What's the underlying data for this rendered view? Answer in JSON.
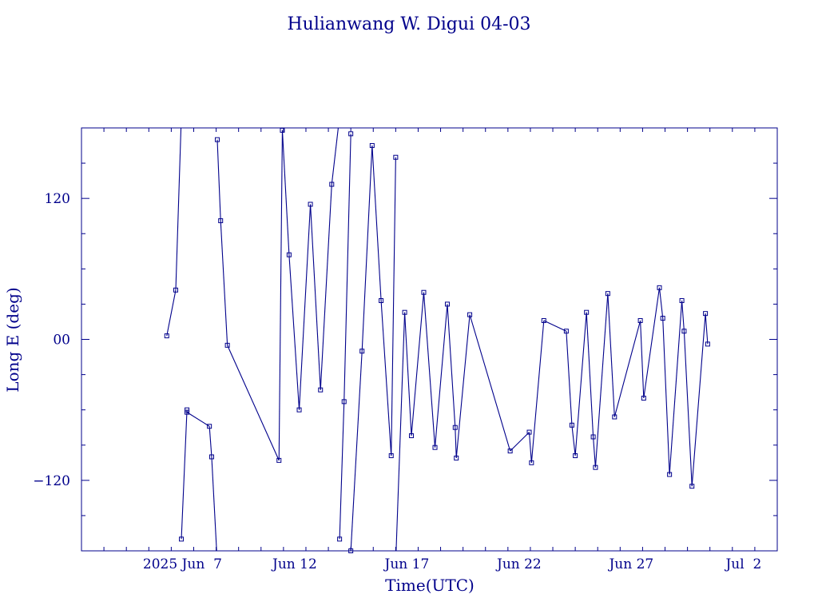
{
  "colors": {
    "ink": "#00008b",
    "background": "#ffffff"
  },
  "chart_data": {
    "type": "line",
    "title": "Hulianwang W. Digui 04-03",
    "xlabel": "Time(UTC)",
    "ylabel": "Long E (deg)",
    "x_unit": "days",
    "x_range": [
      "2025-06-02T12:00",
      "2025-07-03T12:00"
    ],
    "xlim": [
      0,
      31
    ],
    "ylim": [
      -180,
      180
    ],
    "y_wrap": true,
    "x_ticks": [
      {
        "x": 4.5,
        "label": "2025 Jun  7"
      },
      {
        "x": 9.5,
        "label": "Jun 12"
      },
      {
        "x": 14.5,
        "label": "Jun 17"
      },
      {
        "x": 19.5,
        "label": "Jun 22"
      },
      {
        "x": 24.5,
        "label": "Jun 27"
      },
      {
        "x": 29.5,
        "label": "Jul  2"
      }
    ],
    "y_ticks": [
      {
        "y": 120,
        "label": "120"
      },
      {
        "y": 0,
        "label": "00"
      },
      {
        "y": -120,
        "label": "−120"
      }
    ],
    "grid": false,
    "marker": "square",
    "points": [
      [
        3.8,
        3
      ],
      [
        4.2,
        42
      ],
      [
        4.45,
        190
      ],
      [
        4.45,
        -170
      ],
      [
        4.7,
        -60
      ],
      [
        4.7,
        -62
      ],
      [
        5.7,
        -74
      ],
      [
        5.8,
        -100
      ],
      [
        6.05,
        -190
      ],
      [
        6.05,
        170
      ],
      [
        6.2,
        101
      ],
      [
        6.5,
        -5
      ],
      [
        8.8,
        -103
      ],
      [
        8.95,
        178
      ],
      [
        9.25,
        72
      ],
      [
        9.7,
        -60
      ],
      [
        10.2,
        115
      ],
      [
        10.65,
        -43
      ],
      [
        11.15,
        132
      ],
      [
        11.5,
        190
      ],
      [
        11.5,
        -170
      ],
      [
        11.7,
        -53
      ],
      [
        12.0,
        175
      ],
      [
        12.0,
        -180
      ],
      [
        12.5,
        -10
      ],
      [
        12.95,
        165
      ],
      [
        13.35,
        33
      ],
      [
        13.8,
        -99
      ],
      [
        14.0,
        155
      ],
      [
        14.0,
        -190
      ],
      [
        14.4,
        23
      ],
      [
        14.7,
        -82
      ],
      [
        15.25,
        40
      ],
      [
        15.75,
        -92
      ],
      [
        16.3,
        30
      ],
      [
        16.65,
        -75
      ],
      [
        16.7,
        -101
      ],
      [
        17.3,
        21
      ],
      [
        19.1,
        -95
      ],
      [
        19.95,
        -79
      ],
      [
        20.05,
        -105
      ],
      [
        20.6,
        16
      ],
      [
        21.6,
        7
      ],
      [
        21.85,
        -73
      ],
      [
        22.0,
        -99
      ],
      [
        22.5,
        23
      ],
      [
        22.8,
        -83
      ],
      [
        22.9,
        -109
      ],
      [
        23.45,
        39
      ],
      [
        23.75,
        -66
      ],
      [
        24.9,
        16
      ],
      [
        25.05,
        -50
      ],
      [
        25.75,
        44
      ],
      [
        25.9,
        18
      ],
      [
        26.2,
        -115
      ],
      [
        26.75,
        33
      ],
      [
        26.85,
        7
      ],
      [
        27.2,
        -125
      ],
      [
        27.8,
        22
      ],
      [
        27.9,
        -4
      ]
    ]
  }
}
